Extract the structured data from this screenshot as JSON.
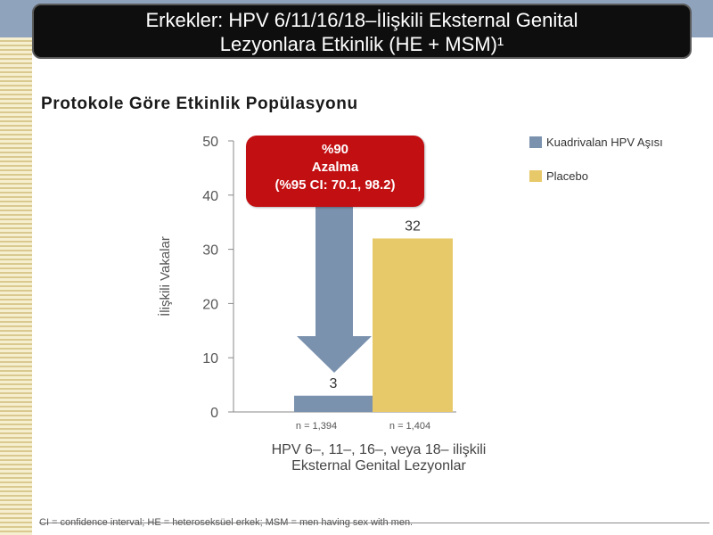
{
  "slide": {
    "title_line1": "Erkekler: HPV 6/11/16/18–İlişkili Eksternal Genital",
    "title_line2": "Lezyonlara Etkinlik (HE + MSM)¹",
    "subtitle": "Protokole Göre Etkinlik Popülasyonu",
    "footnote": "CI = confidence interval; HE = heteroseksüel erkek; MSM = men having sex with men."
  },
  "reduction_callout": {
    "line1": "%90",
    "line2": "Azalma",
    "line3": "(%95 CI: 70.1, 98.2)"
  },
  "colors": {
    "vaccine": "#7b92ae",
    "placebo": "#e8c96a",
    "callout": "#c20f12",
    "title_bg": "#0e0e0e",
    "axis": "#888888"
  },
  "chart_data": {
    "type": "bar",
    "ylabel": "İlişkili Vakalar",
    "ylim": [
      0,
      50
    ],
    "yticks": [
      0,
      10,
      20,
      30,
      40,
      50
    ],
    "grid": false,
    "legend_position": "top-right",
    "category_line1": "HPV 6–, 11–, 16–, veya 18– ilişkili",
    "category_line2": "Eksternal Genital Lezyonlar",
    "series": [
      {
        "name": "Kuadrivalan HPV Aşısı",
        "values": [
          3
        ],
        "label": "3",
        "n_label": "n = 1,394"
      },
      {
        "name": "Placebo",
        "values": [
          32
        ],
        "label": "32",
        "n_label": "n = 1,404"
      }
    ]
  }
}
